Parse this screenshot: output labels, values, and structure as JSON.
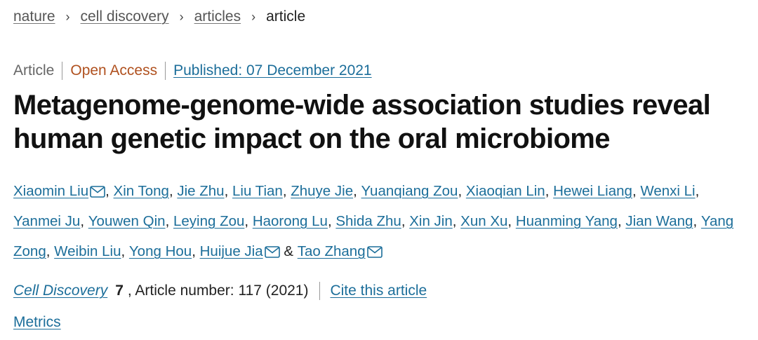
{
  "breadcrumb": {
    "items": [
      "nature",
      "cell discovery",
      "articles"
    ],
    "current": "article",
    "separator": "›"
  },
  "meta": {
    "type": "Article",
    "access": "Open Access",
    "published": "Published: 07 December 2021"
  },
  "title": "Metagenome-genome-wide association studies reveal human genetic impact on the oral microbiome",
  "authors": [
    {
      "name": "Xiaomin Liu",
      "email": true
    },
    {
      "name": "Xin Tong",
      "email": false
    },
    {
      "name": "Jie Zhu",
      "email": false
    },
    {
      "name": "Liu Tian",
      "email": false
    },
    {
      "name": "Zhuye Jie",
      "email": false
    },
    {
      "name": "Yuanqiang Zou",
      "email": false
    },
    {
      "name": "Xiaoqian Lin",
      "email": false
    },
    {
      "name": "Hewei Liang",
      "email": false
    },
    {
      "name": "Wenxi Li",
      "email": false
    },
    {
      "name": "Yanmei Ju",
      "email": false
    },
    {
      "name": "Youwen Qin",
      "email": false
    },
    {
      "name": "Leying Zou",
      "email": false
    },
    {
      "name": "Haorong Lu",
      "email": false
    },
    {
      "name": "Shida Zhu",
      "email": false
    },
    {
      "name": "Xin Jin",
      "email": false
    },
    {
      "name": "Xun Xu",
      "email": false
    },
    {
      "name": "Huanming Yang",
      "email": false
    },
    {
      "name": "Jian Wang",
      "email": false
    },
    {
      "name": "Yang Zong",
      "email": false
    },
    {
      "name": "Weibin Liu",
      "email": false
    },
    {
      "name": "Yong Hou",
      "email": false
    },
    {
      "name": "Huijue Jia",
      "email": true
    },
    {
      "name": "Tao Zhang",
      "email": true
    }
  ],
  "author_separator": ", ",
  "author_last_separator": " & ",
  "citation": {
    "journal": "Cell Discovery",
    "volume": "7",
    "article_number": ", Article number: 117 (2021)",
    "cite_label": "Cite this article"
  },
  "metrics_label": "Metrics",
  "icons": {
    "email": "envelope-icon"
  },
  "colors": {
    "link": "#1c6e9a",
    "open_access": "#b0511f",
    "title": "#111111"
  }
}
